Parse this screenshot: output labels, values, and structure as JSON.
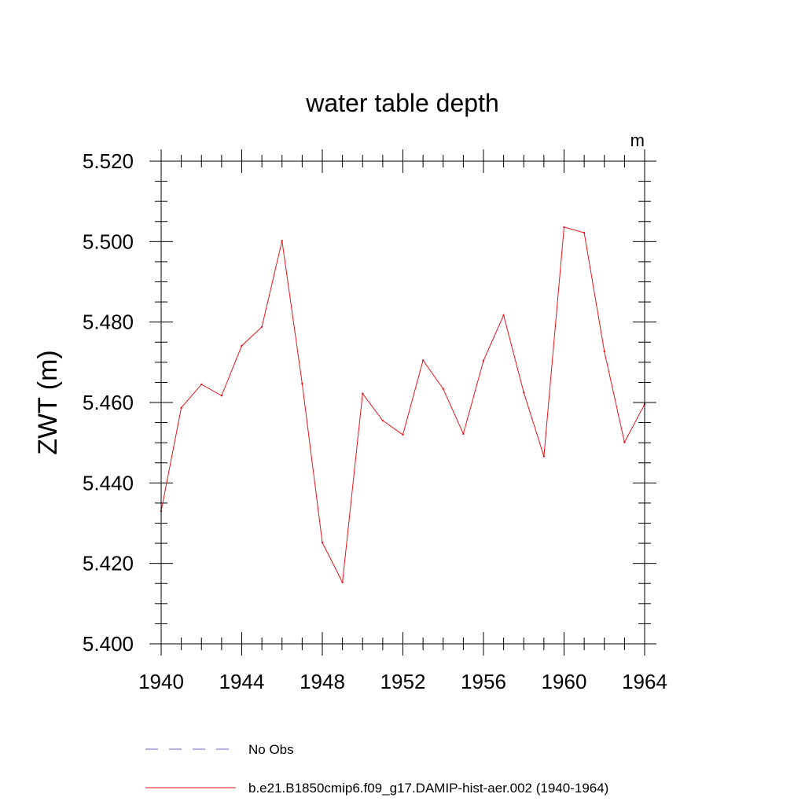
{
  "chart_data": {
    "type": "line",
    "title": "water table depth",
    "units": "m",
    "ylabel": "ZWT  (m)",
    "xlabel": "",
    "xlim": [
      1940,
      1964
    ],
    "ylim": [
      5.4,
      5.52
    ],
    "x_ticks": [
      1940,
      1944,
      1948,
      1952,
      1956,
      1960,
      1964
    ],
    "x_tick_labels": [
      "1940",
      "1944",
      "1948",
      "1952",
      "1956",
      "1960",
      "1964"
    ],
    "y_ticks": [
      5.4,
      5.42,
      5.44,
      5.46,
      5.48,
      5.5,
      5.52
    ],
    "y_tick_labels": [
      "5.400",
      "5.420",
      "5.440",
      "5.460",
      "5.480",
      "5.500",
      "5.520"
    ],
    "grid": false,
    "legend_position": "bottom",
    "legend": [
      {
        "label": "No Obs",
        "color": "#6b5fc0",
        "style": "dashed"
      },
      {
        "label": "b.e21.B1850cmip6.f09_g17.DAMIP-hist-aer.002 (1940-1964)",
        "color": "#e8141b",
        "style": "solid"
      }
    ],
    "series": [
      {
        "name": "b.e21.B1850cmip6.f09_g17.DAMIP-hist-aer.002 (1940-1964)",
        "color": "#e8141b",
        "x": [
          1940,
          1941,
          1942,
          1943,
          1944,
          1945,
          1946,
          1947,
          1948,
          1949,
          1950,
          1951,
          1952,
          1953,
          1954,
          1955,
          1956,
          1957,
          1958,
          1959,
          1960,
          1961,
          1962,
          1963,
          1964
        ],
        "values": [
          5.433,
          5.4587,
          5.4645,
          5.4617,
          5.4741,
          5.4788,
          5.5002,
          5.4647,
          5.4252,
          5.4153,
          5.4622,
          5.4555,
          5.452,
          5.4705,
          5.4634,
          5.4522,
          5.4704,
          5.4817,
          5.4625,
          5.4466,
          5.5036,
          5.5022,
          5.4727,
          5.4501,
          5.4596
        ]
      }
    ]
  }
}
